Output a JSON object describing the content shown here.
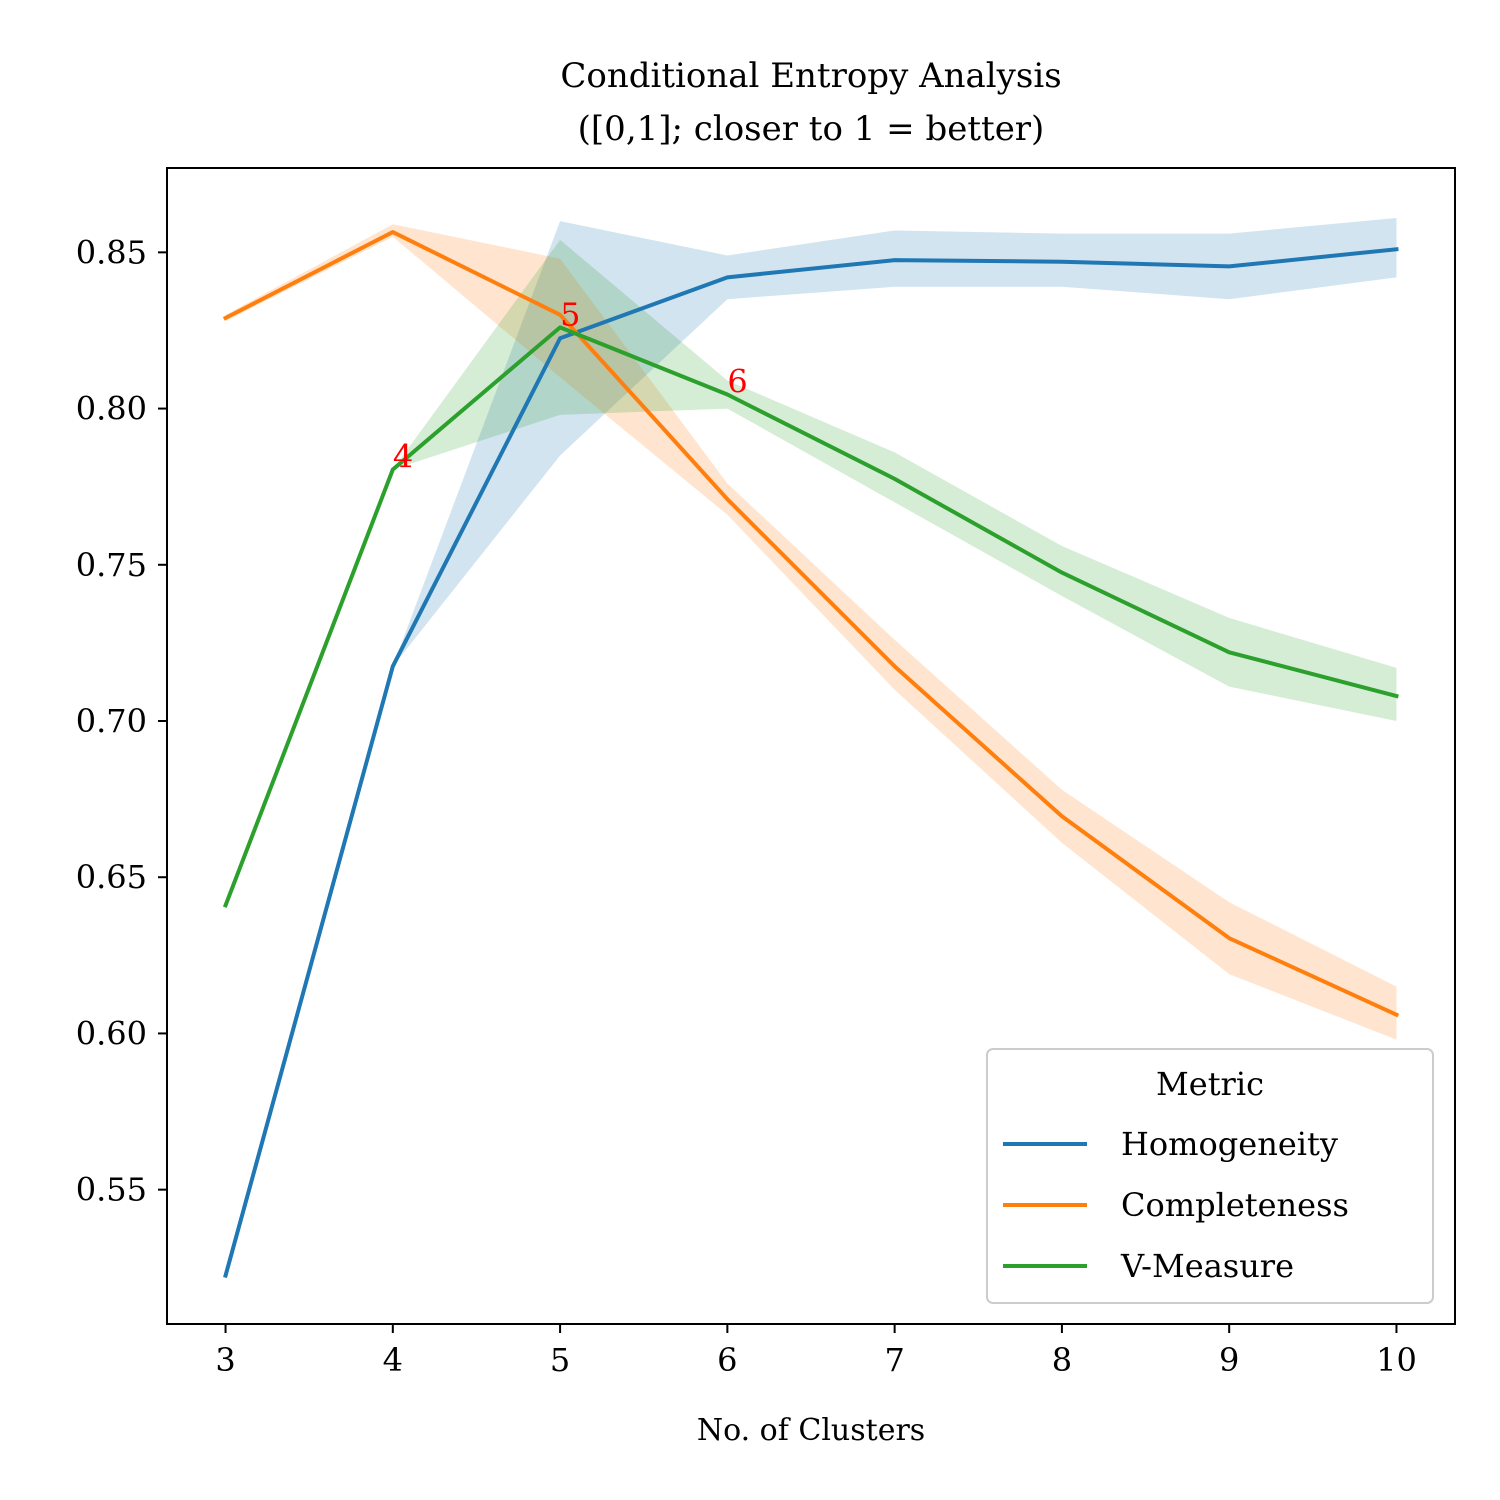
{
  "chart_data": {
    "type": "line",
    "title_line1": "Conditional Entropy Analysis",
    "title_line2": "([0,1]; closer to 1 = better)",
    "xlabel": "No. of Clusters",
    "ylabel": "",
    "x": [
      3,
      4,
      5,
      6,
      7,
      8,
      9,
      10
    ],
    "xlim": [
      2.65,
      10.35
    ],
    "ylim": [
      0.507,
      0.877
    ],
    "xticks": [
      "3",
      "4",
      "5",
      "6",
      "7",
      "8",
      "9",
      "10"
    ],
    "yticks": [
      "0.55",
      "0.60",
      "0.65",
      "0.70",
      "0.75",
      "0.80",
      "0.85"
    ],
    "grid": false,
    "legend": {
      "title": "Metric",
      "position": "lower-right"
    },
    "series": [
      {
        "name": "Homogeneity",
        "color": "#1f77b4",
        "values": [
          0.5225,
          0.7175,
          0.8225,
          0.842,
          0.8475,
          0.847,
          0.8455,
          0.851
        ],
        "lower": [
          0.5225,
          0.7175,
          0.785,
          0.835,
          0.839,
          0.839,
          0.835,
          0.842
        ],
        "upper": [
          0.5225,
          0.7175,
          0.86,
          0.849,
          0.857,
          0.856,
          0.856,
          0.861
        ]
      },
      {
        "name": "Completeness",
        "color": "#ff7f0e",
        "values": [
          0.829,
          0.8565,
          0.83,
          0.771,
          0.7175,
          0.6695,
          0.6305,
          0.606
        ],
        "lower": [
          0.828,
          0.855,
          0.81,
          0.766,
          0.71,
          0.661,
          0.619,
          0.598
        ],
        "upper": [
          0.83,
          0.859,
          0.848,
          0.776,
          0.726,
          0.678,
          0.642,
          0.615
        ]
      },
      {
        "name": "V-Measure",
        "color": "#2ca02c",
        "values": [
          0.641,
          0.7805,
          0.826,
          0.8045,
          0.7775,
          0.7475,
          0.722,
          0.708
        ],
        "lower": [
          0.641,
          0.7805,
          0.798,
          0.8,
          0.77,
          0.74,
          0.711,
          0.7
        ],
        "upper": [
          0.641,
          0.7805,
          0.854,
          0.809,
          0.786,
          0.756,
          0.733,
          0.717
        ]
      }
    ],
    "annotations": [
      {
        "text": "4",
        "x": 4,
        "y": 0.7805,
        "color": "#ff0000"
      },
      {
        "text": "5",
        "x": 5,
        "y": 0.826,
        "color": "#ff0000"
      },
      {
        "text": "6",
        "x": 6,
        "y": 0.8045,
        "color": "#ff0000"
      }
    ]
  }
}
